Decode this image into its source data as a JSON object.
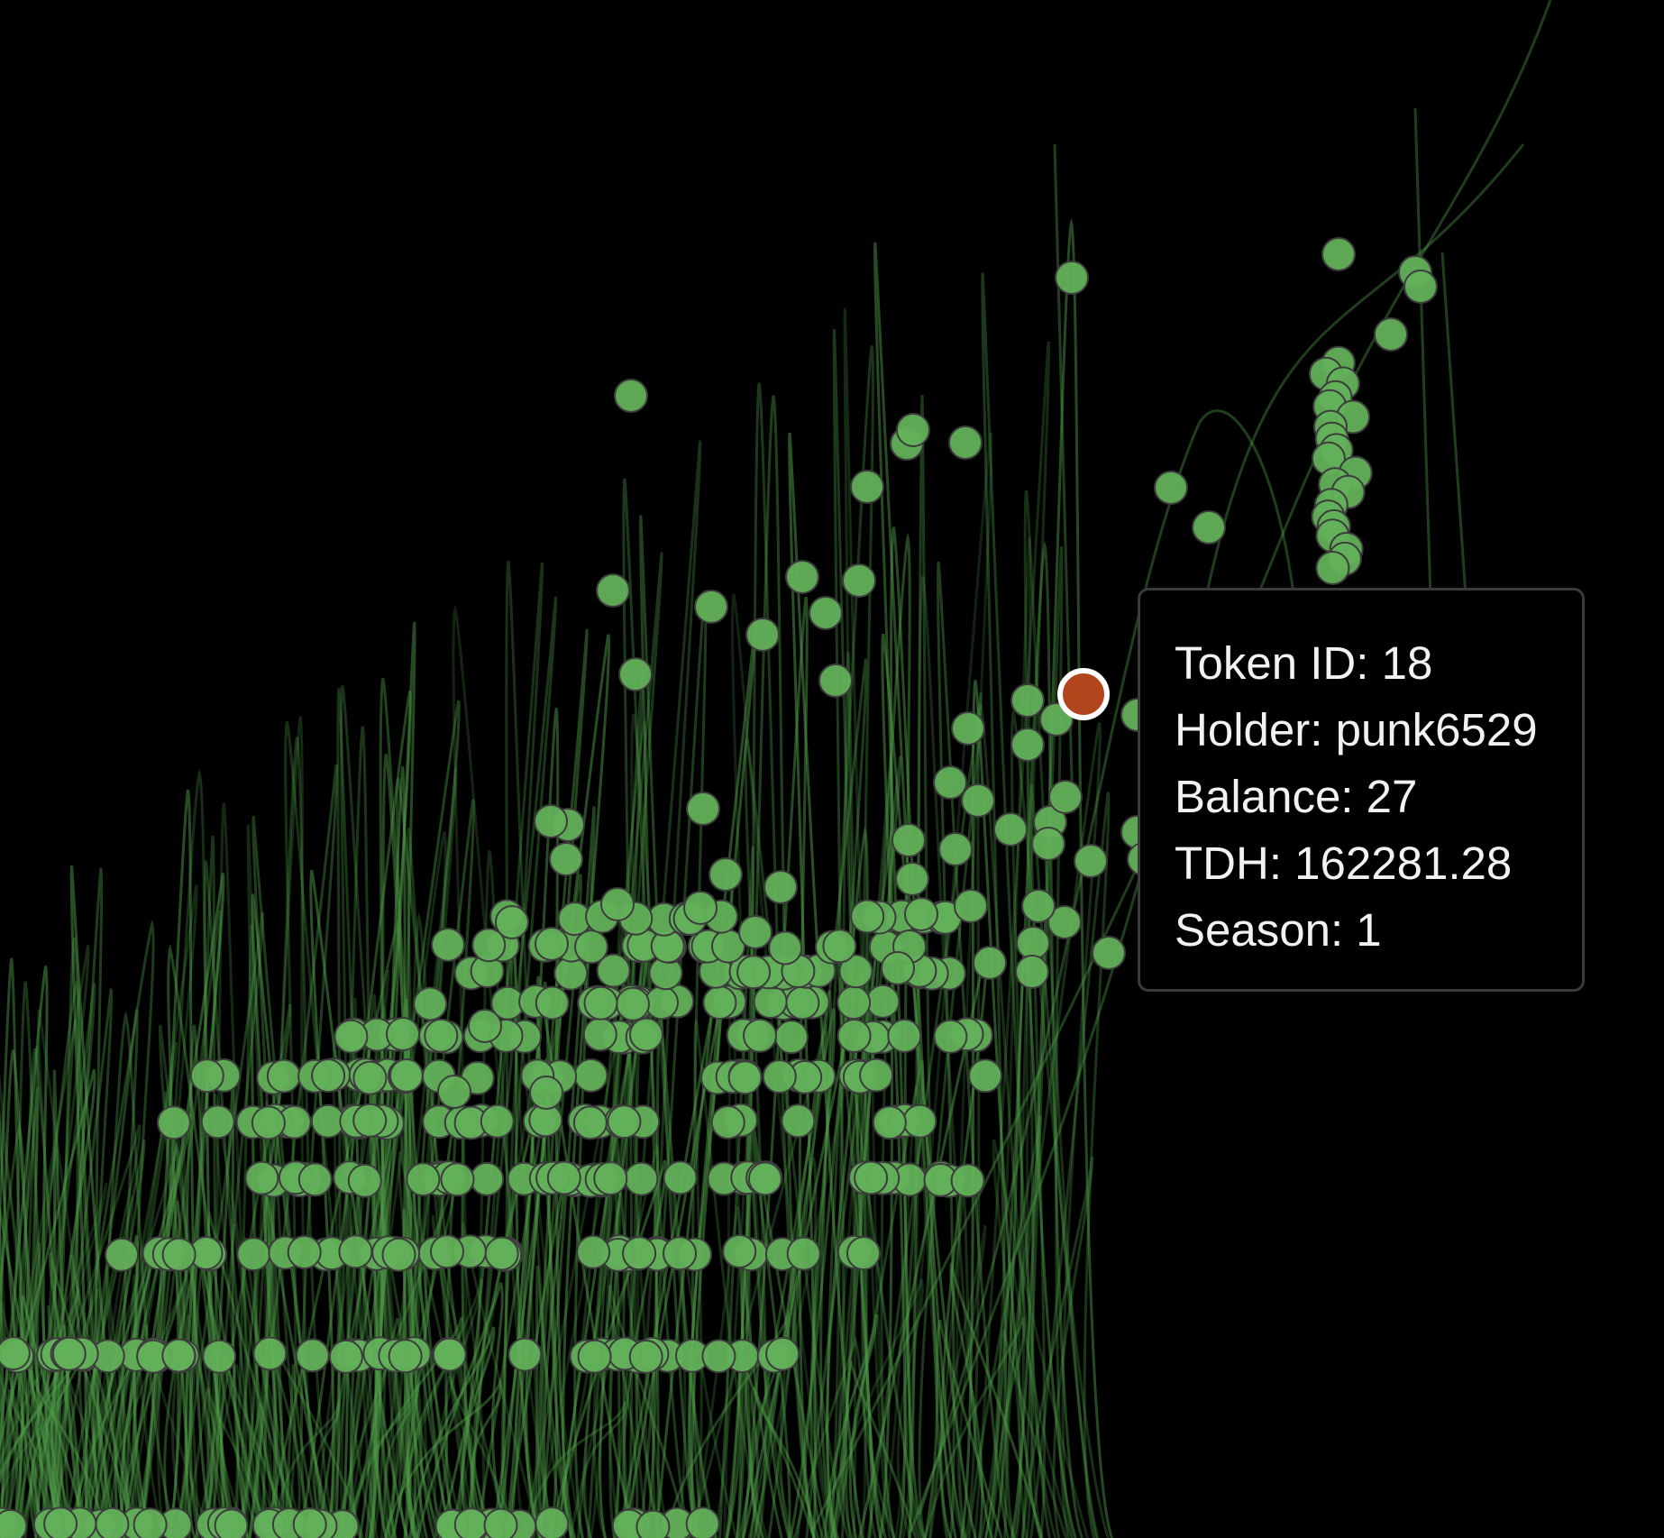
{
  "chart_data": {
    "type": "scatter",
    "title": "",
    "xlabel": "",
    "ylabel": "",
    "colors": {
      "background": "#000000",
      "point_fill": "#62b05a",
      "point_stroke": "#3c3c3c",
      "curve": "#4f9a48",
      "highlight_fill": "#b3451d",
      "highlight_stroke": "#ffffff"
    },
    "highlighted_point": {
      "token_id": 18,
      "holder": "punk6529",
      "balance": 27,
      "tdh": 162281.28,
      "season": 1
    },
    "grid": false,
    "legend": "none"
  },
  "tooltip": {
    "token_id": "Token ID: 18",
    "holder": "Holder: punk6529",
    "balance": "Balance: 27",
    "tdh": "TDH: 162281.28",
    "season": "Season: 1"
  }
}
